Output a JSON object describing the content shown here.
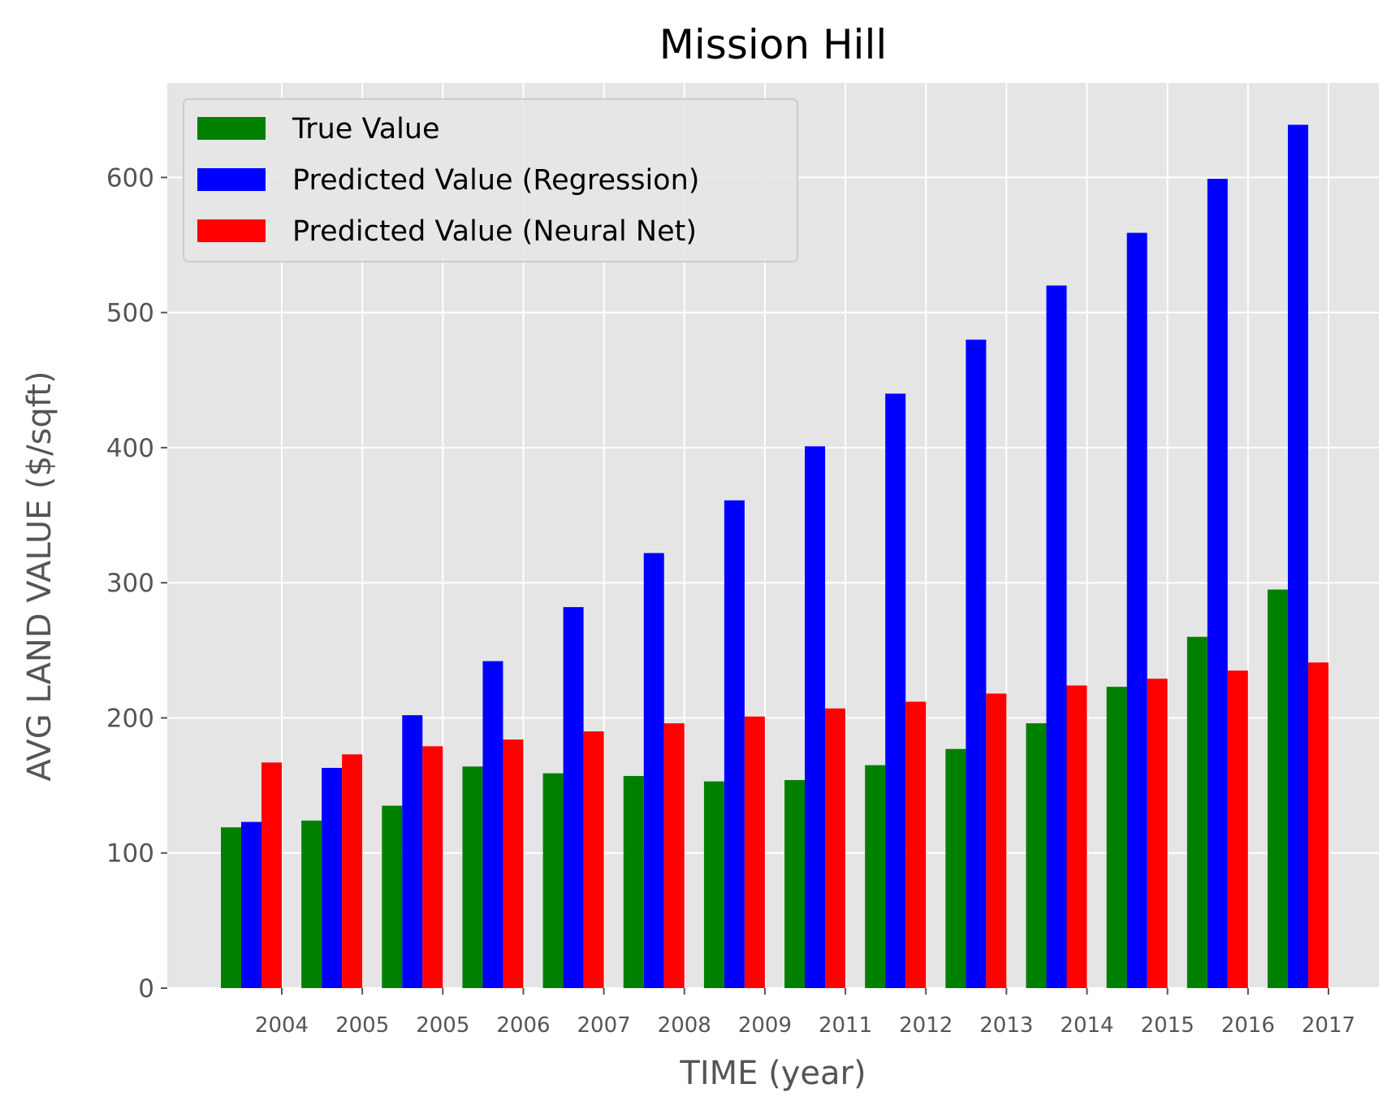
{
  "chart_data": {
    "type": "bar",
    "title": "Mission Hill",
    "xlabel": "TIME (year)",
    "ylabel": "AVG LAND VALUE ($/sqft)",
    "categories": [
      "2004",
      "2005",
      "2005",
      "2006",
      "2007",
      "2008",
      "2009",
      "2011",
      "2012",
      "2013",
      "2014",
      "2015",
      "2016",
      "2017"
    ],
    "series": [
      {
        "name": "True Value",
        "color": "#008000",
        "values": [
          119,
          124,
          135,
          164,
          159,
          157,
          153,
          154,
          165,
          177,
          196,
          223,
          260,
          295
        ]
      },
      {
        "name": "Predicted Value (Regression)",
        "color": "#0000ff",
        "values": [
          123,
          163,
          202,
          242,
          282,
          322,
          361,
          401,
          440,
          480,
          520,
          559,
          599,
          639
        ]
      },
      {
        "name": "Predicted Value (Neural Net)",
        "color": "#ff0000",
        "values": [
          167,
          173,
          179,
          184,
          190,
          196,
          201,
          207,
          212,
          218,
          224,
          229,
          235,
          241
        ]
      }
    ],
    "ylim": [
      0,
      670
    ],
    "yticks": [
      0,
      100,
      200,
      300,
      400,
      500,
      600
    ],
    "grid": true,
    "legend_position": "top-left",
    "background_color": "#e5e5e5",
    "grid_color": "#ffffff"
  }
}
